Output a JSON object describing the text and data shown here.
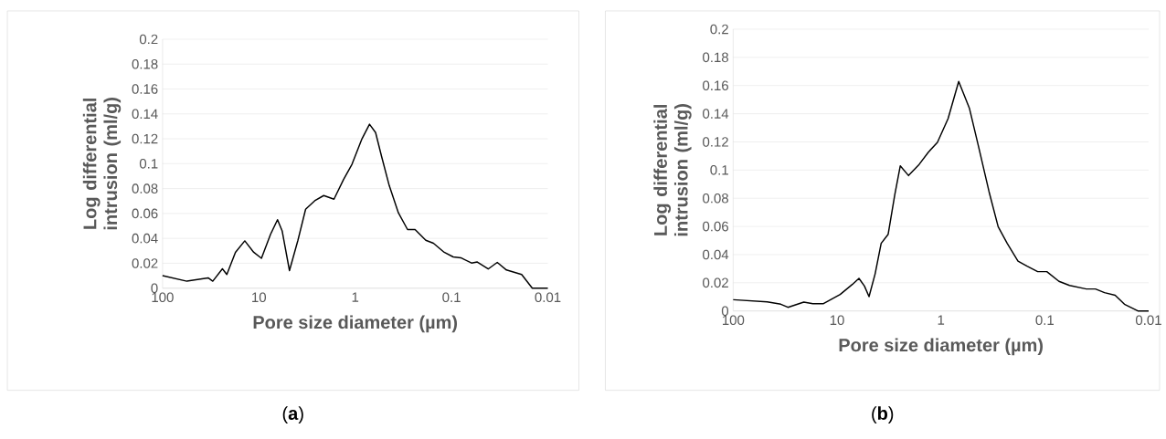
{
  "chart_data": [
    {
      "type": "line",
      "xlabel": "Pore size diameter (µm)",
      "ylabel": "Log differential intrusion (ml/g)",
      "annotations": [
        "(**a**)"
      ],
      "xlim": [
        100,
        0.01
      ],
      "xticks": [
        100,
        10,
        1,
        0.1,
        0.01
      ],
      "log": "x",
      "ylim": [
        0,
        0.2
      ],
      "yticks": [
        0,
        0.02,
        0.04,
        0.06,
        0.08,
        0.1,
        0.12,
        0.14,
        0.16,
        0.18,
        0.2
      ],
      "grid": "y",
      "marker": "none",
      "line_style": "solid",
      "series": [
        {
          "color": "#000000",
          "x": [
            100,
            55.9,
            33.6,
            30.1,
            23.9,
            21.5,
            17.5,
            14.0,
            11.3,
            9.4,
            7.55,
            6.4,
            5.73,
            4.81,
            3.93,
            3.27,
            2.63,
            2.12,
            1.66,
            1.32,
            1.08,
            0.85,
            0.71,
            0.614,
            0.531,
            0.443,
            0.356,
            0.286,
            0.239,
            0.185,
            0.154,
            0.119,
            0.096,
            0.08,
            0.062,
            0.054,
            0.0416,
            0.0335,
            0.0269,
            0.0187,
            0.0145,
            0.01
          ],
          "values": [
            0.01,
            0.0056,
            0.0083,
            0.0056,
            0.0156,
            0.011,
            0.0288,
            0.038,
            0.0288,
            0.024,
            0.0434,
            0.055,
            0.046,
            0.0141,
            0.0385,
            0.0634,
            0.0702,
            0.0744,
            0.0715,
            0.0873,
            0.0995,
            0.12,
            0.1317,
            0.125,
            0.1056,
            0.0824,
            0.0605,
            0.0471,
            0.0471,
            0.0385,
            0.0361,
            0.0288,
            0.0251,
            0.0244,
            0.0202,
            0.021,
            0.0154,
            0.0207,
            0.0146,
            0.011,
            0,
            0
          ]
        }
      ]
    },
    {
      "type": "line",
      "xlabel": "Pore size diameter (µm)",
      "ylabel": "Log differential intrusion (ml/g)",
      "annotations": [
        "(**b**)"
      ],
      "xlim": [
        100,
        0.01
      ],
      "xticks": [
        100,
        10,
        1,
        0.1,
        0.01
      ],
      "log": "x",
      "ylim": [
        0,
        0.2
      ],
      "yticks": [
        0,
        0.02,
        0.04,
        0.06,
        0.08,
        0.1,
        0.12,
        0.14,
        0.16,
        0.18,
        0.2
      ],
      "grid": "y",
      "marker": "none",
      "line_style": "solid",
      "series": [
        {
          "color": "#000000",
          "x": [
            100,
            47.0,
            34.8,
            29.7,
            20.9,
            17.1,
            13.5,
            9.33,
            7.13,
            6.15,
            5.45,
            4.92,
            4.3,
            3.76,
            3.22,
            2.78,
            2.46,
            2.05,
            1.62,
            1.32,
            1.08,
            0.853,
            0.674,
            0.532,
            0.435,
            0.344,
            0.281,
            0.23,
            0.181,
            0.148,
            0.117,
            0.0955,
            0.073,
            0.0577,
            0.0398,
            0.0325,
            0.0266,
            0.021,
            0.0171,
            0.0127,
            0.01
          ],
          "values": [
            0.008,
            0.0065,
            0.0048,
            0.0026,
            0.0063,
            0.0052,
            0.0052,
            0.0117,
            0.0188,
            0.0231,
            0.0177,
            0.0102,
            0.0263,
            0.048,
            0.0544,
            0.0825,
            0.103,
            0.0961,
            0.104,
            0.1127,
            0.1197,
            0.1365,
            0.1629,
            0.144,
            0.117,
            0.0847,
            0.0598,
            0.048,
            0.0354,
            0.0318,
            0.0279,
            0.0279,
            0.021,
            0.0181,
            0.0156,
            0.0156,
            0.013,
            0.0112,
            0.0048,
            0,
            0
          ]
        }
      ]
    }
  ]
}
